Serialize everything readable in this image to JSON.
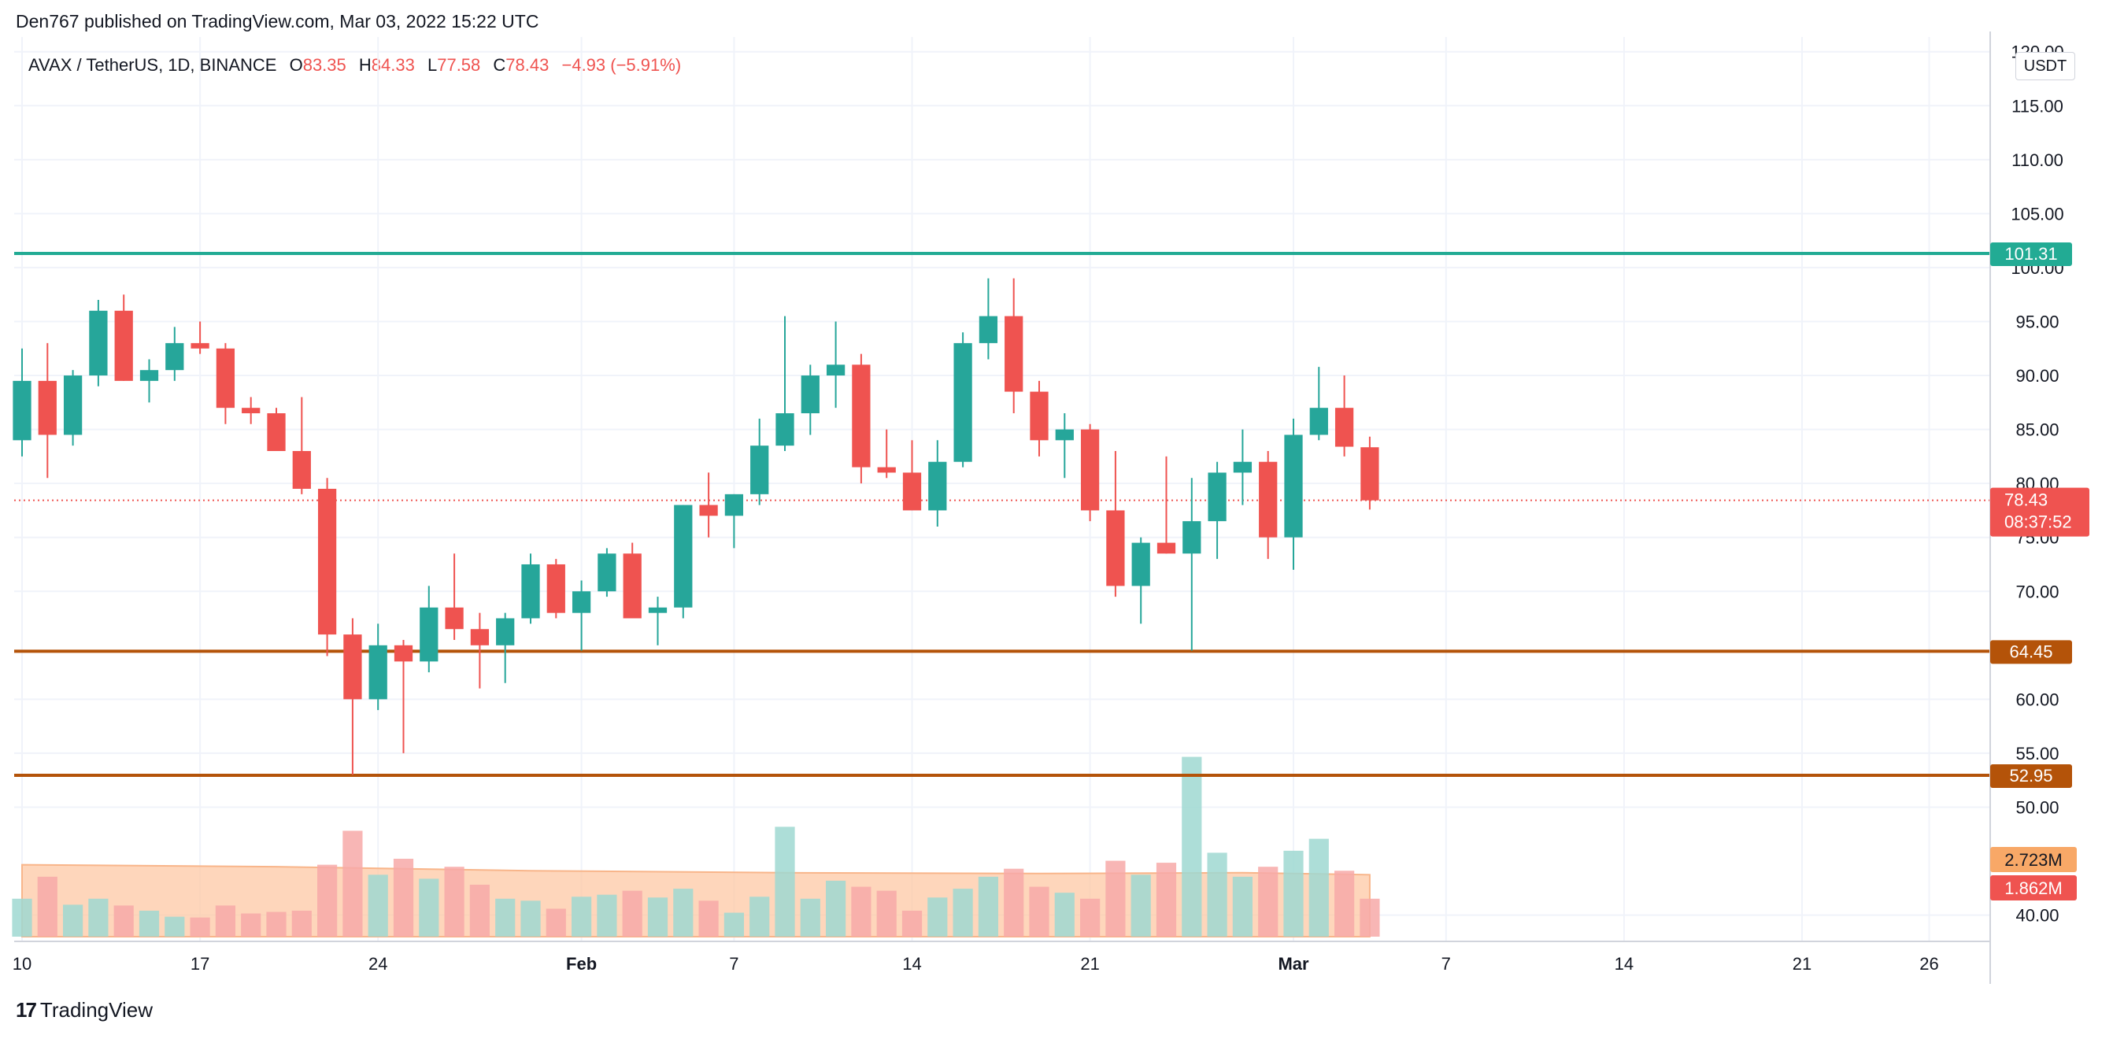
{
  "header": {
    "publisher": "Den767 published on TradingView.com, Mar 03, 2022 15:22 UTC",
    "symbol": "AVAX / TetherUS, 1D, BINANCE",
    "o_label": "O",
    "o_value": "83.35",
    "h_label": "H",
    "h_value": "84.33",
    "l_label": "L",
    "l_value": "77.58",
    "c_label": "C",
    "c_value": "78.43",
    "change": "−4.93 (−5.91%)"
  },
  "currency_button": "USDT",
  "footer": {
    "brand": "TradingView",
    "logo_text": "17"
  },
  "colors": {
    "up": "#26a69a",
    "down": "#ef5350",
    "up_volume": "#9fd8d1",
    "down_volume": "#f7a9a8",
    "volume_ma_fill": "#fdc8a4",
    "volume_ma_line": "#f8b58a",
    "resistance": "#22ab94",
    "support": "#b45309",
    "grid": "#f0f3fa",
    "axis_text": "#131722"
  },
  "chart_data": {
    "type": "candlestick",
    "symbol": "AVAX / TetherUS",
    "interval": "1D",
    "exchange": "BINANCE",
    "ylim": [
      38,
      121
    ],
    "y_ticks": [
      "40.00",
      "50.00",
      "55.00",
      "60.00",
      "70.00",
      "75.00",
      "80.00",
      "85.00",
      "90.00",
      "95.00",
      "100.00",
      "105.00",
      "110.00",
      "115.00",
      "120.00"
    ],
    "x_ticks": [
      {
        "label": "10",
        "day": 10
      },
      {
        "label": "17",
        "day": 17
      },
      {
        "label": "24",
        "day": 24
      },
      {
        "label": "Feb",
        "day": 32
      },
      {
        "label": "7",
        "day": 38
      },
      {
        "label": "14",
        "day": 45
      },
      {
        "label": "21",
        "day": 52
      },
      {
        "label": "Mar",
        "day": 60
      },
      {
        "label": "7",
        "day": 66
      },
      {
        "label": "14",
        "day": 73
      },
      {
        "label": "21",
        "day": 80
      },
      {
        "label": "26",
        "day": 85
      }
    ],
    "candles": [
      {
        "day": 10,
        "o": 84,
        "h": 92.5,
        "l": 82.5,
        "c": 89.5
      },
      {
        "day": 11,
        "o": 89.5,
        "h": 93,
        "l": 80.5,
        "c": 84.5
      },
      {
        "day": 12,
        "o": 84.5,
        "h": 90.5,
        "l": 83.5,
        "c": 90
      },
      {
        "day": 13,
        "o": 90,
        "h": 97,
        "l": 89,
        "c": 96
      },
      {
        "day": 14,
        "o": 96,
        "h": 97.5,
        "l": 89.5,
        "c": 89.5
      },
      {
        "day": 15,
        "o": 89.5,
        "h": 91.5,
        "l": 87.5,
        "c": 90.5
      },
      {
        "day": 16,
        "o": 90.5,
        "h": 94.5,
        "l": 89.5,
        "c": 93
      },
      {
        "day": 17,
        "o": 93,
        "h": 95,
        "l": 92,
        "c": 92.5
      },
      {
        "day": 18,
        "o": 92.5,
        "h": 93,
        "l": 85.5,
        "c": 87
      },
      {
        "day": 19,
        "o": 87,
        "h": 88,
        "l": 85.5,
        "c": 86.5
      },
      {
        "day": 20,
        "o": 86.5,
        "h": 87,
        "l": 83,
        "c": 83
      },
      {
        "day": 21,
        "o": 83,
        "h": 88,
        "l": 79,
        "c": 79.5
      },
      {
        "day": 22,
        "o": 79.5,
        "h": 80.5,
        "l": 64,
        "c": 66
      },
      {
        "day": 23,
        "o": 66,
        "h": 67.5,
        "l": 53,
        "c": 60
      },
      {
        "day": 24,
        "o": 60,
        "h": 67,
        "l": 59,
        "c": 65
      },
      {
        "day": 25,
        "o": 65,
        "h": 65.5,
        "l": 55,
        "c": 63.5
      },
      {
        "day": 26,
        "o": 63.5,
        "h": 70.5,
        "l": 62.5,
        "c": 68.5
      },
      {
        "day": 27,
        "o": 68.5,
        "h": 73.5,
        "l": 65.5,
        "c": 66.5
      },
      {
        "day": 28,
        "o": 66.5,
        "h": 68,
        "l": 61,
        "c": 65
      },
      {
        "day": 29,
        "o": 65,
        "h": 68,
        "l": 61.5,
        "c": 67.5
      },
      {
        "day": 30,
        "o": 67.5,
        "h": 73.5,
        "l": 67,
        "c": 72.5
      },
      {
        "day": 31,
        "o": 72.5,
        "h": 73,
        "l": 67.5,
        "c": 68
      },
      {
        "day": 32,
        "o": 68,
        "h": 71,
        "l": 64.5,
        "c": 70
      },
      {
        "day": 33,
        "o": 70,
        "h": 74,
        "l": 69.5,
        "c": 73.5
      },
      {
        "day": 34,
        "o": 73.5,
        "h": 74.5,
        "l": 67.5,
        "c": 67.5
      },
      {
        "day": 35,
        "o": 68,
        "h": 69.5,
        "l": 65,
        "c": 68.5
      },
      {
        "day": 36,
        "o": 68.5,
        "h": 78,
        "l": 67.5,
        "c": 78
      },
      {
        "day": 37,
        "o": 78,
        "h": 81,
        "l": 75,
        "c": 77
      },
      {
        "day": 38,
        "o": 77,
        "h": 79,
        "l": 74,
        "c": 79
      },
      {
        "day": 39,
        "o": 79,
        "h": 86,
        "l": 78,
        "c": 83.5
      },
      {
        "day": 40,
        "o": 83.5,
        "h": 95.5,
        "l": 83,
        "c": 86.5
      },
      {
        "day": 41,
        "o": 86.5,
        "h": 91,
        "l": 84.5,
        "c": 90
      },
      {
        "day": 42,
        "o": 90,
        "h": 95,
        "l": 87,
        "c": 91
      },
      {
        "day": 43,
        "o": 91,
        "h": 92,
        "l": 80,
        "c": 81.5
      },
      {
        "day": 44,
        "o": 81.5,
        "h": 85,
        "l": 80.5,
        "c": 81
      },
      {
        "day": 45,
        "o": 81,
        "h": 84,
        "l": 77.5,
        "c": 77.5
      },
      {
        "day": 46,
        "o": 77.5,
        "h": 84,
        "l": 76,
        "c": 82
      },
      {
        "day": 47,
        "o": 82,
        "h": 94,
        "l": 81.5,
        "c": 93
      },
      {
        "day": 48,
        "o": 93,
        "h": 99,
        "l": 91.5,
        "c": 95.5
      },
      {
        "day": 49,
        "o": 95.5,
        "h": 99,
        "l": 86.5,
        "c": 88.5
      },
      {
        "day": 50,
        "o": 88.5,
        "h": 89.5,
        "l": 82.5,
        "c": 84
      },
      {
        "day": 51,
        "o": 84,
        "h": 86.5,
        "l": 80.5,
        "c": 85
      },
      {
        "day": 52,
        "o": 85,
        "h": 85.5,
        "l": 76.5,
        "c": 77.5
      },
      {
        "day": 53,
        "o": 77.5,
        "h": 83,
        "l": 69.5,
        "c": 70.5
      },
      {
        "day": 54,
        "o": 70.5,
        "h": 75,
        "l": 67,
        "c": 74.5
      },
      {
        "day": 55,
        "o": 74.5,
        "h": 82.5,
        "l": 73.5,
        "c": 73.5
      },
      {
        "day": 56,
        "o": 73.5,
        "h": 80.5,
        "l": 64.5,
        "c": 76.5
      },
      {
        "day": 57,
        "o": 76.5,
        "h": 82,
        "l": 73,
        "c": 81
      },
      {
        "day": 58,
        "o": 81,
        "h": 85,
        "l": 78,
        "c": 82
      },
      {
        "day": 59,
        "o": 82,
        "h": 83,
        "l": 73,
        "c": 75
      },
      {
        "day": 60,
        "o": 75,
        "h": 86,
        "l": 72,
        "c": 84.5
      },
      {
        "day": 61,
        "o": 84.5,
        "h": 90.8,
        "l": 84,
        "c": 87
      },
      {
        "day": 62,
        "o": 87,
        "h": 90,
        "l": 82.5,
        "c": 83.4
      },
      {
        "day": 63,
        "o": 83.35,
        "h": 84.33,
        "l": 77.58,
        "c": 78.43
      }
    ],
    "volumes": [
      {
        "day": 10,
        "v": 0.95,
        "dir": "up"
      },
      {
        "day": 11,
        "v": 1.5,
        "dir": "down"
      },
      {
        "day": 12,
        "v": 0.8,
        "dir": "up"
      },
      {
        "day": 13,
        "v": 0.95,
        "dir": "up"
      },
      {
        "day": 14,
        "v": 0.78,
        "dir": "down"
      },
      {
        "day": 15,
        "v": 0.65,
        "dir": "up"
      },
      {
        "day": 16,
        "v": 0.5,
        "dir": "up"
      },
      {
        "day": 17,
        "v": 0.48,
        "dir": "down"
      },
      {
        "day": 18,
        "v": 0.78,
        "dir": "down"
      },
      {
        "day": 19,
        "v": 0.58,
        "dir": "down"
      },
      {
        "day": 20,
        "v": 0.62,
        "dir": "down"
      },
      {
        "day": 21,
        "v": 0.65,
        "dir": "down"
      },
      {
        "day": 22,
        "v": 1.8,
        "dir": "down"
      },
      {
        "day": 23,
        "v": 2.65,
        "dir": "down"
      },
      {
        "day": 24,
        "v": 1.55,
        "dir": "up"
      },
      {
        "day": 25,
        "v": 1.95,
        "dir": "down"
      },
      {
        "day": 26,
        "v": 1.45,
        "dir": "up"
      },
      {
        "day": 27,
        "v": 1.75,
        "dir": "down"
      },
      {
        "day": 28,
        "v": 1.3,
        "dir": "down"
      },
      {
        "day": 29,
        "v": 0.95,
        "dir": "up"
      },
      {
        "day": 30,
        "v": 0.9,
        "dir": "up"
      },
      {
        "day": 31,
        "v": 0.7,
        "dir": "down"
      },
      {
        "day": 32,
        "v": 1.0,
        "dir": "up"
      },
      {
        "day": 33,
        "v": 1.05,
        "dir": "up"
      },
      {
        "day": 34,
        "v": 1.15,
        "dir": "down"
      },
      {
        "day": 35,
        "v": 0.98,
        "dir": "up"
      },
      {
        "day": 36,
        "v": 1.2,
        "dir": "up"
      },
      {
        "day": 37,
        "v": 0.9,
        "dir": "down"
      },
      {
        "day": 38,
        "v": 0.6,
        "dir": "up"
      },
      {
        "day": 39,
        "v": 1.0,
        "dir": "up"
      },
      {
        "day": 40,
        "v": 2.75,
        "dir": "up"
      },
      {
        "day": 41,
        "v": 0.95,
        "dir": "up"
      },
      {
        "day": 42,
        "v": 1.4,
        "dir": "up"
      },
      {
        "day": 43,
        "v": 1.25,
        "dir": "down"
      },
      {
        "day": 44,
        "v": 1.15,
        "dir": "down"
      },
      {
        "day": 45,
        "v": 0.65,
        "dir": "down"
      },
      {
        "day": 46,
        "v": 0.98,
        "dir": "up"
      },
      {
        "day": 47,
        "v": 1.2,
        "dir": "up"
      },
      {
        "day": 48,
        "v": 1.5,
        "dir": "up"
      },
      {
        "day": 49,
        "v": 1.7,
        "dir": "down"
      },
      {
        "day": 50,
        "v": 1.25,
        "dir": "down"
      },
      {
        "day": 51,
        "v": 1.1,
        "dir": "up"
      },
      {
        "day": 52,
        "v": 0.95,
        "dir": "down"
      },
      {
        "day": 53,
        "v": 1.9,
        "dir": "down"
      },
      {
        "day": 54,
        "v": 1.55,
        "dir": "up"
      },
      {
        "day": 55,
        "v": 1.85,
        "dir": "down"
      },
      {
        "day": 56,
        "v": 4.5,
        "dir": "up"
      },
      {
        "day": 57,
        "v": 2.1,
        "dir": "up"
      },
      {
        "day": 58,
        "v": 1.5,
        "dir": "up"
      },
      {
        "day": 59,
        "v": 1.75,
        "dir": "down"
      },
      {
        "day": 60,
        "v": 2.15,
        "dir": "up"
      },
      {
        "day": 61,
        "v": 2.45,
        "dir": "up"
      },
      {
        "day": 62,
        "v": 1.65,
        "dir": "down"
      },
      {
        "day": 63,
        "v": 0.95,
        "dir": "down"
      }
    ],
    "volume_ma": [
      {
        "day": 10,
        "v": 1.8
      },
      {
        "day": 20,
        "v": 1.75
      },
      {
        "day": 30,
        "v": 1.65
      },
      {
        "day": 40,
        "v": 1.6
      },
      {
        "day": 50,
        "v": 1.58
      },
      {
        "day": 58,
        "v": 1.6
      },
      {
        "day": 63,
        "v": 1.55
      }
    ],
    "volume_max": 6.5,
    "horizontal_lines": [
      {
        "label": "101.31",
        "value": 101.31,
        "style": "resistance"
      },
      {
        "label": "64.45",
        "value": 64.45,
        "style": "support"
      },
      {
        "label": "52.95",
        "value": 52.95,
        "style": "support"
      }
    ],
    "last_price": {
      "label": "78.43",
      "value": 78.43,
      "countdown": "08:37:52"
    },
    "volume_labels": {
      "ma_value": "2.723M",
      "volume": "1.862M"
    }
  }
}
